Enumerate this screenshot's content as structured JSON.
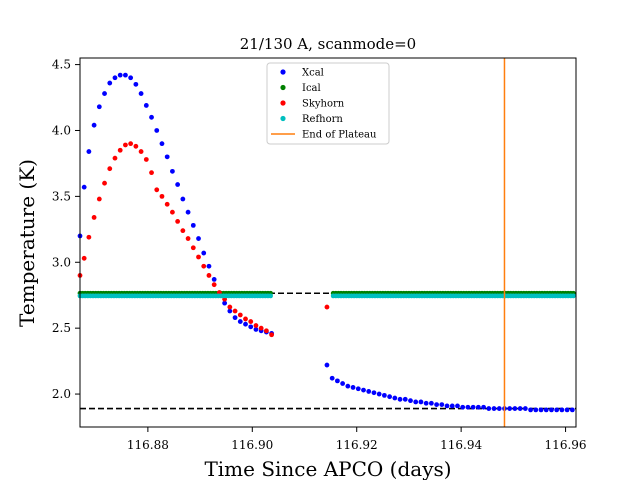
{
  "chart_data": {
    "type": "scatter",
    "title": "21/130 A, scanmode=0",
    "xlabel": "Time Since APCO (days)",
    "ylabel": "Temperature (K)",
    "xlim": [
      116.867,
      116.962
    ],
    "ylim": [
      1.75,
      4.55
    ],
    "xticks": [
      116.88,
      116.9,
      116.92,
      116.94,
      116.96
    ],
    "xtick_labels": [
      "116.88",
      "116.90",
      "116.92",
      "116.94",
      "116.96"
    ],
    "yticks": [
      2.0,
      2.5,
      3.0,
      3.5,
      4.0,
      4.5
    ],
    "ytick_labels": [
      "2.0",
      "2.5",
      "3.0",
      "3.5",
      "4.0",
      "4.5"
    ],
    "legend_position": "top-center",
    "series": [
      {
        "name": "Xcal",
        "color": "#0000ff",
        "segments": [
          {
            "x": [
              116.867,
              116.8678,
              116.8687,
              116.8697,
              116.8707,
              116.8717,
              116.8727,
              116.8737,
              116.8747,
              116.8757,
              116.8767,
              116.8777,
              116.8787,
              116.8797,
              116.8807,
              116.8817,
              116.8827,
              116.8837,
              116.8847,
              116.8857,
              116.8867,
              116.8877,
              116.8887,
              116.8897,
              116.8907,
              116.8917,
              116.8927,
              116.8937,
              116.8947,
              116.8957,
              116.8967,
              116.8977,
              116.8987,
              116.8997,
              116.9007,
              116.9017,
              116.9027,
              116.9037
            ],
            "y": [
              3.2,
              3.57,
              3.84,
              4.04,
              4.18,
              4.28,
              4.36,
              4.4,
              4.42,
              4.42,
              4.4,
              4.35,
              4.28,
              4.19,
              4.1,
              4.0,
              3.9,
              3.8,
              3.69,
              3.59,
              3.48,
              3.38,
              3.28,
              3.18,
              3.07,
              2.97,
              2.87,
              2.76,
              2.69,
              2.63,
              2.58,
              2.55,
              2.53,
              2.51,
              2.49,
              2.48,
              2.47,
              2.46
            ]
          },
          {
            "x": [
              116.9143,
              116.9153,
              116.9163,
              116.9173,
              116.9183,
              116.9193,
              116.9203,
              116.9213,
              116.9223,
              116.9233,
              116.9243,
              116.9253,
              116.9263,
              116.9273,
              116.9283,
              116.9293,
              116.9303,
              116.9313,
              116.9323,
              116.9333,
              116.9343,
              116.9353,
              116.9363,
              116.9373,
              116.9383,
              116.9393,
              116.9403,
              116.9413,
              116.9423,
              116.9433,
              116.9443,
              116.9453,
              116.9463,
              116.9473,
              116.9483,
              116.9493,
              116.9503,
              116.9513,
              116.9523,
              116.9533,
              116.9543,
              116.9553,
              116.9563,
              116.9573,
              116.9583,
              116.9593,
              116.9603,
              116.9613
            ],
            "y": [
              2.22,
              2.12,
              2.1,
              2.08,
              2.06,
              2.05,
              2.04,
              2.03,
              2.02,
              2.01,
              2.0,
              1.99,
              1.98,
              1.97,
              1.96,
              1.96,
              1.95,
              1.94,
              1.94,
              1.93,
              1.93,
              1.92,
              1.92,
              1.91,
              1.91,
              1.91,
              1.9,
              1.9,
              1.9,
              1.9,
              1.9,
              1.89,
              1.89,
              1.89,
              1.89,
              1.89,
              1.89,
              1.89,
              1.89,
              1.88,
              1.88,
              1.88,
              1.88,
              1.88,
              1.88,
              1.88,
              1.88,
              1.88
            ]
          }
        ]
      },
      {
        "name": "Ical",
        "color": "#008000",
        "segments": [
          {
            "x_range": [
              116.867,
              116.9037
            ],
            "step": 0.0005,
            "y": 2.765
          },
          {
            "x_range": [
              116.9155,
              116.9615
            ],
            "step": 0.0005,
            "y": 2.765
          }
        ]
      },
      {
        "name": "Skyhorn",
        "color": "#ff0000",
        "segments": [
          {
            "x": [
              116.867,
              116.8678,
              116.8687,
              116.8697,
              116.8707,
              116.8717,
              116.8727,
              116.8737,
              116.8747,
              116.8757,
              116.8767,
              116.8777,
              116.8787,
              116.8797,
              116.8807,
              116.8817,
              116.8827,
              116.8837,
              116.8847,
              116.8857,
              116.8867,
              116.8877,
              116.8887,
              116.8897,
              116.8907,
              116.8917,
              116.8927,
              116.8937,
              116.8947,
              116.8957,
              116.8967,
              116.8977,
              116.8987,
              116.8997,
              116.9007,
              116.9017,
              116.9027,
              116.9037
            ],
            "y": [
              2.9,
              3.03,
              3.19,
              3.34,
              3.48,
              3.6,
              3.71,
              3.79,
              3.85,
              3.89,
              3.9,
              3.88,
              3.84,
              3.78,
              3.68,
              3.55,
              3.5,
              3.44,
              3.38,
              3.31,
              3.24,
              3.18,
              3.11,
              3.04,
              2.97,
              2.9,
              2.83,
              2.77,
              2.72,
              2.66,
              2.63,
              2.6,
              2.57,
              2.55,
              2.52,
              2.5,
              2.48,
              2.45
            ]
          },
          {
            "x": [
              116.9143
            ],
            "y": [
              2.66
            ]
          }
        ]
      },
      {
        "name": "Refhorn",
        "color": "#00bfbf",
        "segments": [
          {
            "x_range": [
              116.867,
              116.9037
            ],
            "step": 0.0005,
            "y": 2.745
          },
          {
            "x_range": [
              116.9155,
              116.9615
            ],
            "step": 0.0005,
            "y": 2.745
          }
        ]
      }
    ],
    "vertical_line": {
      "name": "End of Plateau",
      "x": 116.9483,
      "color": "#ff7f0e"
    },
    "reference_lines": [
      {
        "y": 2.765,
        "style": "dashed",
        "color": "#000000"
      },
      {
        "y": 1.89,
        "style": "dashed",
        "color": "#000000"
      }
    ]
  }
}
